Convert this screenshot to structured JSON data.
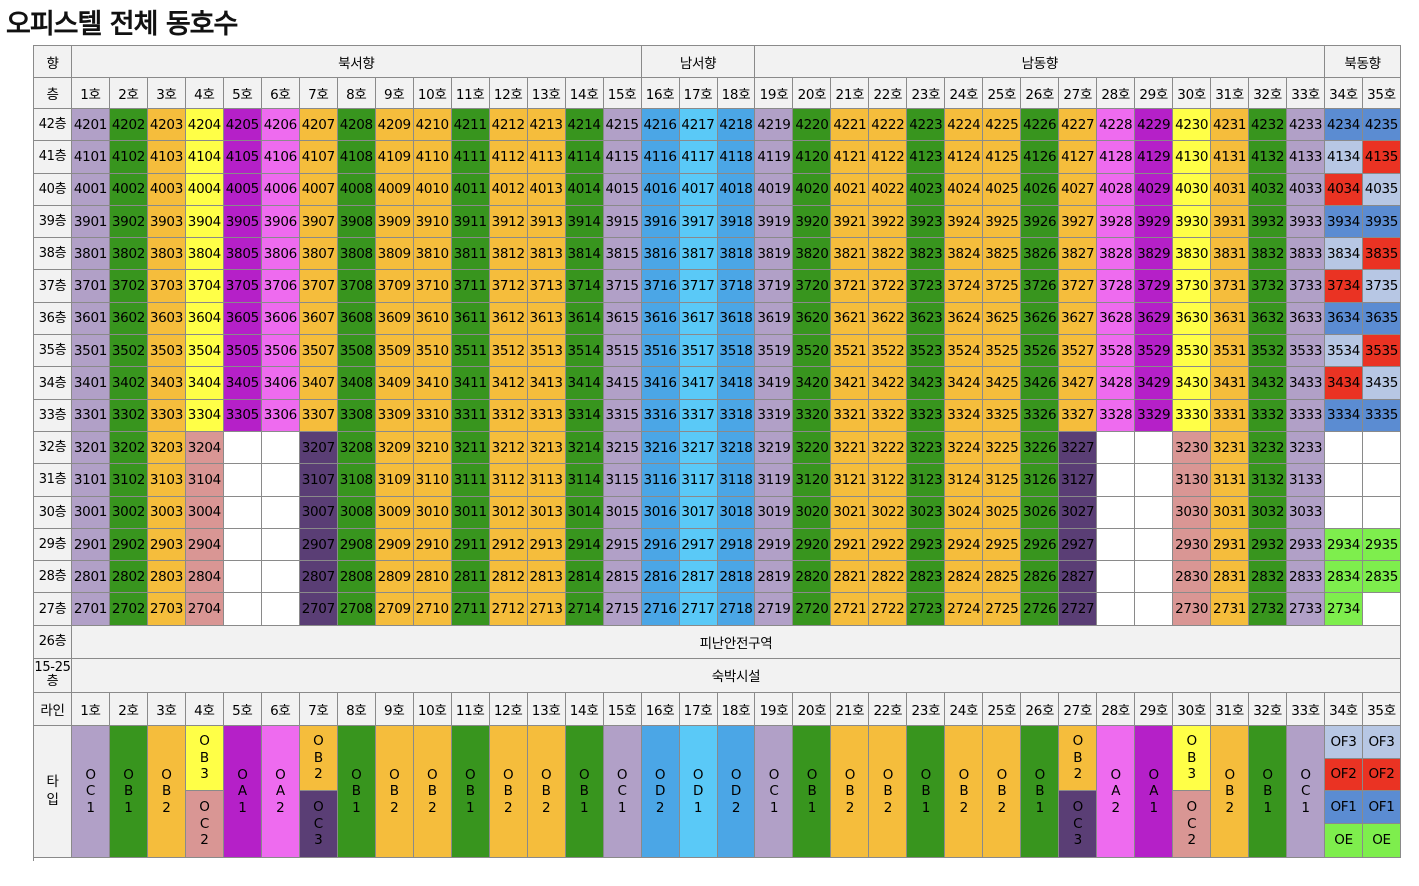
{
  "title": "오피스텔 전체 동호수",
  "labels": {
    "direction": "향",
    "floor": "층",
    "line": "라인",
    "type": "타입"
  },
  "directions": [
    {
      "name": "북서향",
      "from": 1,
      "to": 15
    },
    {
      "name": "남서향",
      "from": 16,
      "to": 18
    },
    {
      "name": "남동향",
      "from": 19,
      "to": 33
    },
    {
      "name": "북동향",
      "from": 34,
      "to": 35
    }
  ],
  "units": [
    "1호",
    "2호",
    "3호",
    "4호",
    "5호",
    "6호",
    "7호",
    "8호",
    "9호",
    "10호",
    "11호",
    "12호",
    "13호",
    "14호",
    "15호",
    "16호",
    "17호",
    "18호",
    "19호",
    "20호",
    "21호",
    "22호",
    "23호",
    "24호",
    "25호",
    "26호",
    "27호",
    "28호",
    "29호",
    "30호",
    "31호",
    "32호",
    "33호",
    "34호",
    "35호"
  ],
  "floors_upper": [
    "42층",
    "41층",
    "40층",
    "39층",
    "38층",
    "37층",
    "36층",
    "35층",
    "34층",
    "33층"
  ],
  "floors_lower": [
    "32층",
    "31층",
    "30층",
    "29층",
    "28층",
    "27층"
  ],
  "floor_26": {
    "label": "26층",
    "text": "피난안전구역"
  },
  "floor_15_25": {
    "label": "15-25층",
    "text": "숙박시설"
  },
  "colors": {
    "OC1": "#b1a0c7",
    "OB1": "#38951e",
    "OB2": "#f5bd3c",
    "OB3": "#ffff47",
    "OC2": "#d99694",
    "OA1": "#b520c8",
    "OA2": "#ee6bef",
    "OC3": "#5a3e75",
    "OD1": "#5ac9f7",
    "OD2": "#4ba6e6",
    "OF1": "#5b8cd2",
    "OF2": "#ea3323",
    "OF3": "#b7c7e4",
    "OE": "#7eee4d",
    "blank": "#ffffff"
  },
  "upper_types": [
    "OC1",
    "OB1",
    "OB2",
    "OB3",
    "OA1",
    "OA2",
    "OB2",
    "OB1",
    "OB2",
    "OB2",
    "OB1",
    "OB2",
    "OB2",
    "OB1",
    "OC1",
    "OD2",
    "OD1",
    "OD2",
    "OC1",
    "OB1",
    "OB2",
    "OB2",
    "OB1",
    "OB2",
    "OB2",
    "OB1",
    "OB2",
    "OA2",
    "OA1",
    "OB3",
    "OB2",
    "OB1",
    "OC1"
  ],
  "lower_types": [
    "OC1",
    "OB1",
    "OB2",
    "OC2",
    "blank",
    "blank",
    "OC3",
    "OB1",
    "OB2",
    "OB2",
    "OB1",
    "OB2",
    "OB2",
    "OB1",
    "OC1",
    "OD2",
    "OD1",
    "OD2",
    "OC1",
    "OB1",
    "OB2",
    "OB2",
    "OB1",
    "OB2",
    "OB2",
    "OB1",
    "OC3",
    "blank",
    "blank",
    "OC2",
    "OB2",
    "OB1",
    "OC1"
  ],
  "ne_types": {
    "42": [
      "OF1",
      "OF1"
    ],
    "41": [
      "OF3",
      "OF2"
    ],
    "40": [
      "OF2",
      "OF3"
    ],
    "39": [
      "OF1",
      "OF1"
    ],
    "38": [
      "OF3",
      "OF2"
    ],
    "37": [
      "OF2",
      "OF3"
    ],
    "36": [
      "OF1",
      "OF1"
    ],
    "35": [
      "OF3",
      "OF2"
    ],
    "34": [
      "OF2",
      "OF3"
    ],
    "33": [
      "OF1",
      "OF1"
    ],
    "32": [
      "blank",
      "blank"
    ],
    "31": [
      "blank",
      "blank"
    ],
    "30": [
      "blank",
      "blank"
    ],
    "29": [
      "OE",
      "OE"
    ],
    "28": [
      "OE",
      "OE"
    ],
    "27": [
      "OE",
      "blank"
    ]
  },
  "type_row": [
    {
      "code": "OC1"
    },
    {
      "code": "OB1"
    },
    {
      "code": "OB2"
    },
    {
      "top": "OB3",
      "bottom": "OC2"
    },
    {
      "code": "OA1"
    },
    {
      "code": "OA2"
    },
    {
      "top": "OB2",
      "bottom": "OC3"
    },
    {
      "code": "OB1"
    },
    {
      "code": "OB2"
    },
    {
      "code": "OB2"
    },
    {
      "code": "OB1"
    },
    {
      "code": "OB2"
    },
    {
      "code": "OB2"
    },
    {
      "code": "OB1"
    },
    {
      "code": "OC1"
    },
    {
      "code": "OD2"
    },
    {
      "code": "OD1"
    },
    {
      "code": "OD2"
    },
    {
      "code": "OC1"
    },
    {
      "code": "OB1"
    },
    {
      "code": "OB2"
    },
    {
      "code": "OB2"
    },
    {
      "code": "OB1"
    },
    {
      "code": "OB2"
    },
    {
      "code": "OB2"
    },
    {
      "code": "OB1"
    },
    {
      "top": "OB2",
      "bottom": "OC3"
    },
    {
      "code": "OA2"
    },
    {
      "code": "OA1"
    },
    {
      "top": "OB3",
      "bottom": "OC2"
    },
    {
      "code": "OB2"
    },
    {
      "code": "OB1"
    },
    {
      "code": "OC1"
    },
    {
      "stack": [
        "OF3",
        "OF2",
        "OF1",
        "OE"
      ]
    },
    {
      "stack": [
        "OF3",
        "OF2",
        "OF1",
        "OE"
      ]
    }
  ]
}
